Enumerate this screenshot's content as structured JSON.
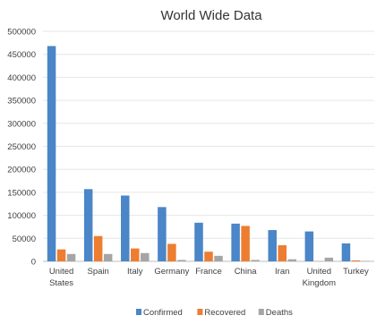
{
  "chart_data": {
    "type": "bar",
    "title": "World Wide Data",
    "xlabel": "",
    "ylabel": "",
    "ylim": [
      0,
      500000
    ],
    "yticks": [
      "0",
      "50000",
      "100000",
      "150000",
      "200000",
      "250000",
      "300000",
      "350000",
      "400000",
      "450000",
      "500000"
    ],
    "grid": true,
    "legend_position": "bottom",
    "categories": [
      [
        "United",
        "States"
      ],
      [
        "Spain"
      ],
      [
        "Italy"
      ],
      [
        "Germany"
      ],
      [
        "France"
      ],
      [
        "China"
      ],
      [
        "Iran"
      ],
      [
        "United",
        "Kingdom"
      ],
      [
        "Turkey"
      ]
    ],
    "series": [
      {
        "name": "Confirmed",
        "color": "#4a86c8",
        "values": [
          468000,
          157000,
          143000,
          118000,
          84000,
          82000,
          68000,
          65000,
          39000
        ]
      },
      {
        "name": "Recovered",
        "color": "#ed7d31",
        "values": [
          26000,
          55000,
          28000,
          38000,
          21000,
          77000,
          35000,
          500,
          2000
        ]
      },
      {
        "name": "Deaths",
        "color": "#a5a5a5",
        "values": [
          16000,
          16000,
          18000,
          3000,
          12000,
          3000,
          4500,
          8000,
          1000
        ]
      }
    ]
  }
}
